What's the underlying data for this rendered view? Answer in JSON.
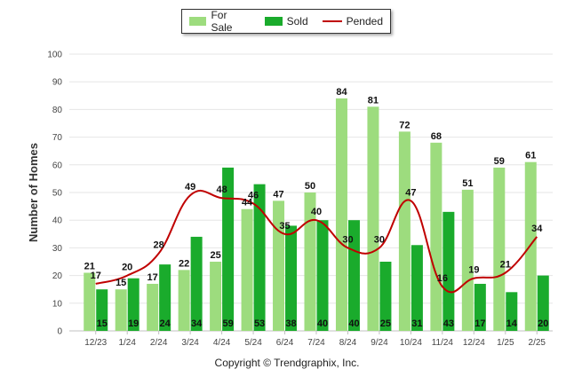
{
  "chart_data": {
    "type": "bar",
    "ylabel": "Number of Homes",
    "ylim": [
      0,
      100
    ],
    "yticks": [
      0,
      10,
      20,
      30,
      40,
      50,
      60,
      70,
      80,
      90,
      100
    ],
    "grid": true,
    "legend_position": "top-center",
    "categories": [
      "12/23",
      "1/24",
      "2/24",
      "3/24",
      "4/24",
      "5/24",
      "6/24",
      "7/24",
      "8/24",
      "9/24",
      "10/24",
      "11/24",
      "12/24",
      "1/25",
      "2/25"
    ],
    "series": [
      {
        "name": "For Sale",
        "kind": "bar",
        "color": "#9ddc7e",
        "values": [
          21,
          15,
          17,
          22,
          25,
          44,
          47,
          50,
          84,
          81,
          72,
          68,
          51,
          59,
          61
        ]
      },
      {
        "name": "Sold",
        "kind": "bar",
        "color": "#1aab2c",
        "values": [
          15,
          19,
          24,
          34,
          59,
          53,
          38,
          40,
          40,
          25,
          31,
          43,
          17,
          14,
          20
        ]
      },
      {
        "name": "Pended",
        "kind": "line",
        "color": "#c00000",
        "values": [
          17,
          20,
          28,
          49,
          48,
          46,
          35,
          40,
          30,
          30,
          47,
          16,
          19,
          21,
          34
        ]
      }
    ]
  },
  "legend": {
    "items": [
      {
        "label": "For Sale",
        "color": "#9ddc7e",
        "shape": "box"
      },
      {
        "label": "Sold",
        "color": "#1aab2c",
        "shape": "box"
      },
      {
        "label": "Pended",
        "color": "#c00000",
        "shape": "line"
      }
    ]
  },
  "footer": {
    "copyright": "Copyright © Trendgraphix, Inc."
  }
}
